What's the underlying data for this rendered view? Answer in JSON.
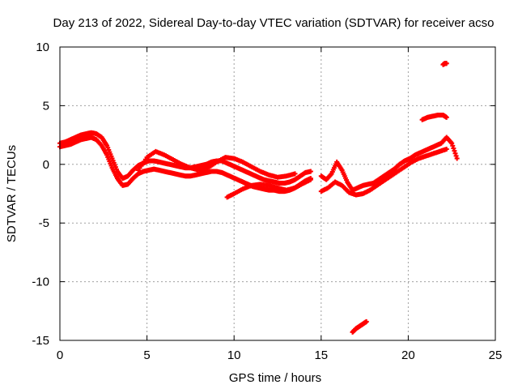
{
  "chart_data": {
    "type": "scatter",
    "title": "Day 213 of 2022, Sidereal Day-to-day VTEC variation (SDTVAR) for receiver acso",
    "xlabel": "GPS time / hours",
    "ylabel": "SDTVAR / TECUs",
    "xlim": [
      0,
      25
    ],
    "ylim": [
      -15,
      10
    ],
    "xticks": [
      0,
      5,
      10,
      15,
      20,
      25
    ],
    "yticks": [
      -15,
      -10,
      -5,
      0,
      5,
      10
    ],
    "grid": true,
    "marker_color": "#ff0000",
    "series": [
      {
        "name": "SDTVAR band A",
        "x": [
          0.0,
          0.3,
          0.6,
          0.9,
          1.2,
          1.5,
          1.8,
          2.1,
          2.4,
          2.7,
          3.0,
          3.3,
          3.6,
          3.9,
          4.2,
          4.5,
          4.8,
          5.1,
          5.4,
          5.7,
          6.0,
          6.3,
          6.6,
          6.9,
          7.2,
          7.5,
          7.8,
          8.1,
          8.4,
          8.7,
          9.0,
          9.3,
          9.6,
          9.9,
          10.2,
          10.5,
          10.8,
          11.1,
          11.4,
          11.7,
          12.0,
          12.3,
          12.6,
          12.9,
          13.2,
          13.5,
          13.8,
          14.1,
          14.4
        ],
        "y": [
          1.8,
          1.9,
          2.1,
          2.3,
          2.5,
          2.6,
          2.7,
          2.6,
          2.3,
          1.6,
          0.5,
          -0.6,
          -1.2,
          -1.0,
          -0.5,
          -0.1,
          0.1,
          0.3,
          0.3,
          0.2,
          0.1,
          0.0,
          -0.1,
          -0.2,
          -0.3,
          -0.3,
          -0.2,
          -0.1,
          0.0,
          0.2,
          0.3,
          0.3,
          0.1,
          -0.1,
          -0.3,
          -0.5,
          -0.7,
          -0.9,
          -1.1,
          -1.3,
          -1.4,
          -1.5,
          -1.6,
          -1.6,
          -1.5,
          -1.3,
          -1.0,
          -0.7,
          -0.6
        ]
      },
      {
        "name": "SDTVAR band B",
        "x": [
          0.0,
          0.3,
          0.6,
          0.9,
          1.2,
          1.5,
          1.8,
          2.1,
          2.4,
          2.7,
          3.0,
          3.3,
          3.6,
          3.9,
          4.2,
          4.5,
          4.8,
          5.1,
          5.4,
          5.7,
          6.0,
          6.3,
          6.6,
          6.9,
          7.2,
          7.5,
          7.8,
          8.1,
          8.4,
          8.7,
          9.0,
          9.3,
          9.6,
          9.9,
          10.2,
          10.5,
          10.8,
          11.1,
          11.4,
          11.7,
          12.0,
          12.3,
          12.6,
          12.9,
          13.2,
          13.5,
          13.8,
          14.1,
          14.4
        ],
        "y": [
          1.5,
          1.6,
          1.7,
          1.9,
          2.1,
          2.2,
          2.3,
          2.1,
          1.6,
          0.8,
          -0.3,
          -1.2,
          -1.8,
          -1.7,
          -1.2,
          -0.8,
          -0.6,
          -0.5,
          -0.4,
          -0.5,
          -0.6,
          -0.7,
          -0.8,
          -0.9,
          -1.0,
          -1.0,
          -0.9,
          -0.8,
          -0.7,
          -0.6,
          -0.6,
          -0.7,
          -0.9,
          -1.1,
          -1.3,
          -1.5,
          -1.7,
          -1.9,
          -2.0,
          -2.1,
          -2.2,
          -2.2,
          -2.3,
          -2.3,
          -2.2,
          -2.0,
          -1.7,
          -1.4,
          -1.2
        ]
      },
      {
        "name": "SDTVAR upper band (evening)",
        "x": [
          4.5,
          5.0,
          5.5,
          6.0,
          6.5,
          7.0,
          7.5,
          8.0,
          8.5,
          9.0,
          9.5,
          10.0,
          10.5,
          11.0,
          11.5,
          12.0,
          12.5,
          13.0,
          13.5
        ],
        "y": [
          -0.5,
          0.6,
          1.1,
          0.8,
          0.4,
          0.0,
          -0.3,
          -0.5,
          -0.3,
          0.2,
          0.6,
          0.5,
          0.2,
          -0.2,
          -0.6,
          -0.9,
          -1.1,
          -1.0,
          -0.8
        ]
      },
      {
        "name": "SDTVAR lower branch",
        "x": [
          9.6,
          10.0,
          10.5,
          11.0,
          11.5,
          12.0,
          12.5,
          13.0,
          13.5,
          14.0,
          14.4
        ],
        "y": [
          -2.8,
          -2.5,
          -2.1,
          -1.8,
          -1.7,
          -1.8,
          -2.0,
          -2.2,
          -2.0,
          -1.6,
          -1.3
        ]
      },
      {
        "name": "SDTVAR late segment",
        "x": [
          15.0,
          15.3,
          15.6,
          15.9,
          16.2,
          16.5,
          16.8,
          17.1,
          17.4,
          17.7,
          18.0,
          18.3,
          18.6,
          18.9,
          19.2,
          19.5,
          19.8,
          20.1,
          20.4,
          20.7,
          21.0,
          21.3,
          21.6,
          21.9,
          22.2,
          22.5,
          22.8
        ],
        "y": [
          -1.0,
          -1.3,
          -0.8,
          0.2,
          -0.5,
          -1.5,
          -2.2,
          -2.0,
          -1.8,
          -1.7,
          -1.6,
          -1.3,
          -1.0,
          -0.7,
          -0.4,
          0.0,
          0.3,
          0.5,
          0.8,
          1.0,
          1.2,
          1.4,
          1.6,
          1.8,
          2.3,
          1.8,
          0.5
        ]
      },
      {
        "name": "SDTVAR late segment lower",
        "x": [
          15.0,
          15.4,
          15.8,
          16.2,
          16.6,
          17.0,
          17.4,
          17.8,
          18.2,
          18.6,
          19.0,
          19.4,
          19.8,
          20.2,
          20.6,
          21.0,
          21.4,
          21.8,
          22.2
        ],
        "y": [
          -2.3,
          -2.0,
          -1.5,
          -1.8,
          -2.4,
          -2.6,
          -2.5,
          -2.2,
          -1.8,
          -1.4,
          -1.0,
          -0.6,
          -0.2,
          0.2,
          0.5,
          0.7,
          0.9,
          1.1,
          1.3
        ]
      },
      {
        "name": "SDTVAR outlier high",
        "x": [
          22.0,
          22.1,
          22.2
        ],
        "y": [
          8.5,
          8.6,
          8.6
        ]
      },
      {
        "name": "SDTVAR outlier cluster",
        "x": [
          20.8,
          21.1,
          21.4,
          21.7,
          22.0,
          22.2
        ],
        "y": [
          3.8,
          4.0,
          4.1,
          4.2,
          4.2,
          4.0
        ]
      },
      {
        "name": "SDTVAR outlier low",
        "x": [
          16.8,
          17.0,
          17.2,
          17.4,
          17.6
        ],
        "y": [
          -14.3,
          -14.0,
          -13.8,
          -13.6,
          -13.4
        ]
      }
    ]
  }
}
